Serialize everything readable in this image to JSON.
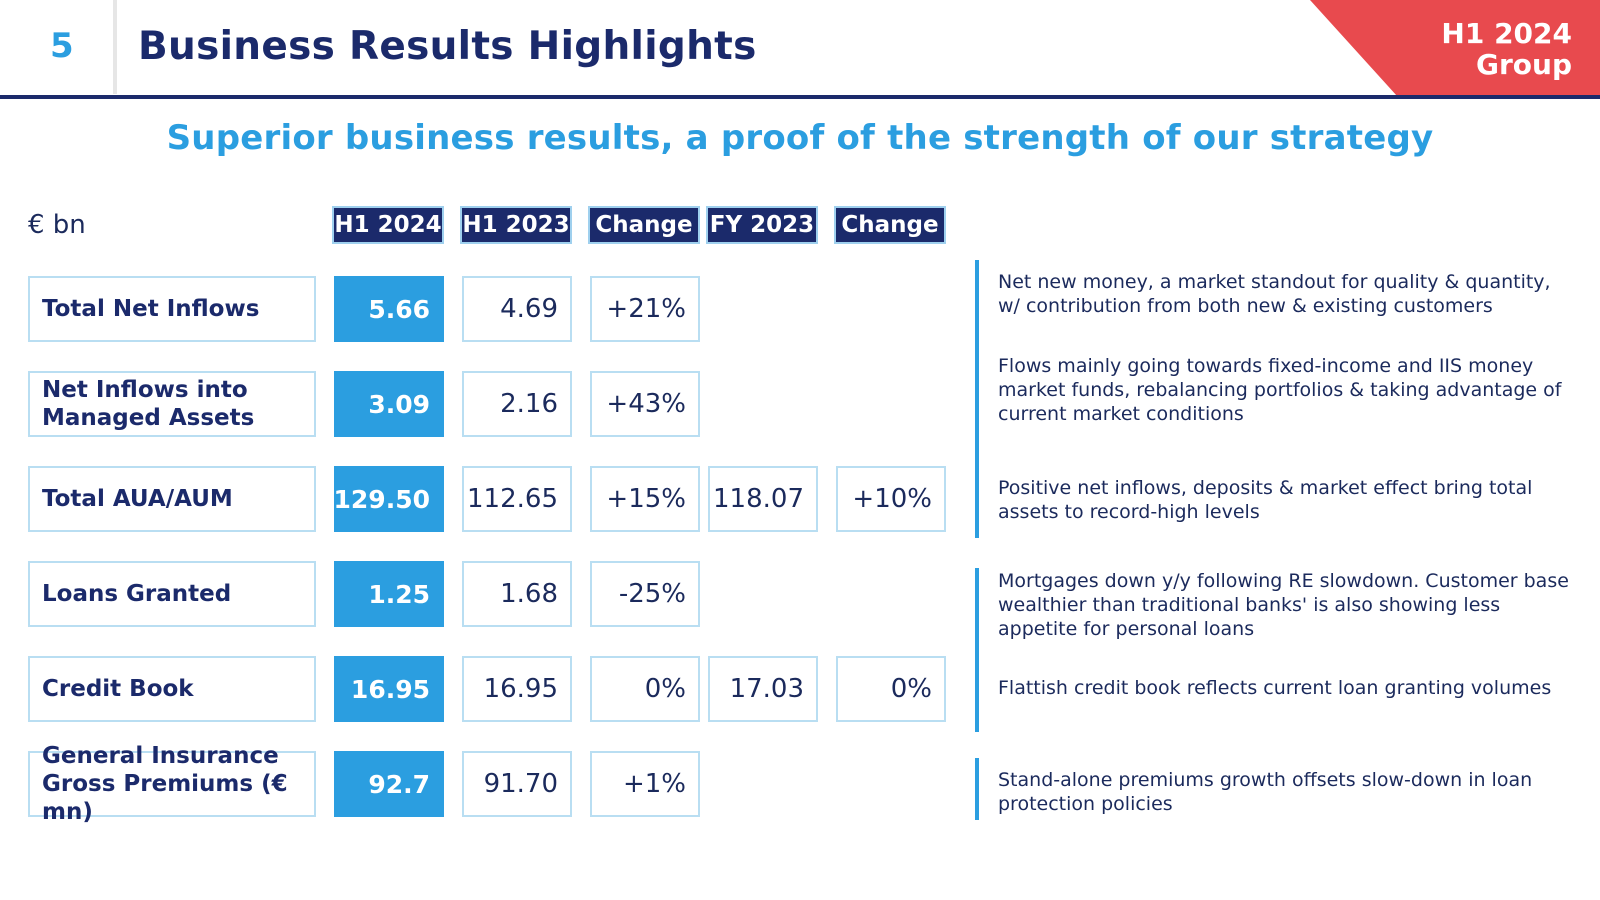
{
  "header": {
    "page_number": "5",
    "title": "Business Results Highlights",
    "corner_line1": "H1 2024",
    "corner_line2": "Group",
    "corner_color": "#e84a4e"
  },
  "subtitle": "Superior business results, a proof of the strength of our strategy",
  "table": {
    "unit": "€ bn",
    "columns": [
      "H1 2024",
      "H1 2023",
      "Change",
      "FY 2023",
      "Change"
    ],
    "rows": [
      {
        "label": "Total Net Inflows",
        "h1_2024": "5.66",
        "h1_2023": "4.69",
        "change_h1": "+21%",
        "fy_2023": "",
        "change_fy": "",
        "comment": "Net new money, a market standout for quality & quantity, w/ contribution from both new & existing customers"
      },
      {
        "label": "Net Inflows into Managed Assets",
        "h1_2024": "3.09",
        "h1_2023": "2.16",
        "change_h1": "+43%",
        "fy_2023": "",
        "change_fy": "",
        "comment": "Flows mainly going towards fixed-income and IIS money market funds, rebalancing portfolios & taking advantage of current market conditions"
      },
      {
        "label": "Total AUA/AUM",
        "h1_2024": "129.50",
        "h1_2023": "112.65",
        "change_h1": "+15%",
        "fy_2023": "118.07",
        "change_fy": "+10%",
        "comment": "Positive net inflows, deposits & market effect bring total assets to record-high levels"
      },
      {
        "label": "Loans Granted",
        "h1_2024": "1.25",
        "h1_2023": "1.68",
        "change_h1": "-25%",
        "fy_2023": "",
        "change_fy": "",
        "comment": "Mortgages down y/y following RE slowdown. Customer base wealthier than traditional banks' is also showing less appetite for personal loans"
      },
      {
        "label": "Credit Book",
        "h1_2024": "16.95",
        "h1_2023": "16.95",
        "change_h1": "0%",
        "fy_2023": "17.03",
        "change_fy": "0%",
        "comment": "Flattish credit book reflects current loan granting volumes"
      },
      {
        "label": "General Insurance Gross Premiums (€ mn)",
        "h1_2024": "92.7",
        "h1_2023": "91.70",
        "change_h1": "+1%",
        "fy_2023": "",
        "change_fy": "",
        "comment": "Stand-alone premiums growth offsets slow-down in loan protection policies"
      }
    ]
  },
  "colors": {
    "navy": "#1b2a6b",
    "accent_blue": "#2b9ee0",
    "cell_border": "#b9def2",
    "red": "#e84a4e"
  }
}
